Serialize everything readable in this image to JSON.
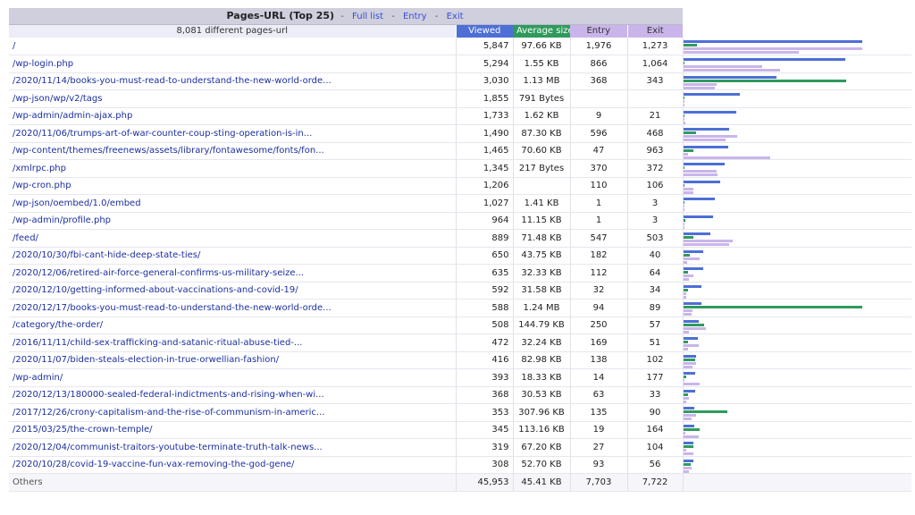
{
  "header": {
    "title": "Pages-URL (Top 25)",
    "links": [
      "Full list",
      "Entry",
      "Exit"
    ],
    "separator": "-",
    "count_label": "8,081 different pages-url",
    "columns": {
      "viewed": "Viewed",
      "average_size": "Average size",
      "entry": "Entry",
      "exit": "Exit"
    }
  },
  "colors": {
    "viewed": "#4d6fd6",
    "average_size": "#2f9a5d",
    "entry": "#c9b5ea",
    "exit": "#c9b5ea",
    "header_bg": "#cfcfde"
  },
  "rows": [
    {
      "url": "/",
      "viewed": "5,847",
      "size": "97.66 KB",
      "entry": "1,976",
      "exit": "1,273"
    },
    {
      "url": "/wp-login.php",
      "viewed": "5,294",
      "size": "1.55 KB",
      "entry": "866",
      "exit": "1,064"
    },
    {
      "url": "/2020/11/14/books-you-must-read-to-understand-the-new-world-orde...",
      "viewed": "3,030",
      "size": "1.13 MB",
      "entry": "368",
      "exit": "343"
    },
    {
      "url": "/wp-json/wp/v2/tags",
      "viewed": "1,855",
      "size": "791 Bytes",
      "entry": "",
      "exit": ""
    },
    {
      "url": "/wp-admin/admin-ajax.php",
      "viewed": "1,733",
      "size": "1.62 KB",
      "entry": "9",
      "exit": "21"
    },
    {
      "url": "/2020/11/06/trumps-art-of-war-counter-coup-sting-operation-is-in...",
      "viewed": "1,490",
      "size": "87.30 KB",
      "entry": "596",
      "exit": "468"
    },
    {
      "url": "/wp-content/themes/freenews/assets/library/fontawesome/fonts/fon...",
      "viewed": "1,465",
      "size": "70.60 KB",
      "entry": "47",
      "exit": "963"
    },
    {
      "url": "/xmlrpc.php",
      "viewed": "1,345",
      "size": "217 Bytes",
      "entry": "370",
      "exit": "372"
    },
    {
      "url": "/wp-cron.php",
      "viewed": "1,206",
      "size": "",
      "entry": "110",
      "exit": "106"
    },
    {
      "url": "/wp-json/oembed/1.0/embed",
      "viewed": "1,027",
      "size": "1.41 KB",
      "entry": "1",
      "exit": "3"
    },
    {
      "url": "/wp-admin/profile.php",
      "viewed": "964",
      "size": "11.15 KB",
      "entry": "1",
      "exit": "3"
    },
    {
      "url": "/feed/",
      "viewed": "889",
      "size": "71.48 KB",
      "entry": "547",
      "exit": "503"
    },
    {
      "url": "/2020/10/30/fbi-cant-hide-deep-state-ties/",
      "viewed": "650",
      "size": "43.75 KB",
      "entry": "182",
      "exit": "40"
    },
    {
      "url": "/2020/12/06/retired-air-force-general-confirms-us-military-seize...",
      "viewed": "635",
      "size": "32.33 KB",
      "entry": "112",
      "exit": "64"
    },
    {
      "url": "/2020/12/10/getting-informed-about-vaccinations-and-covid-19/",
      "viewed": "592",
      "size": "31.58 KB",
      "entry": "32",
      "exit": "34"
    },
    {
      "url": "/2020/12/17/books-you-must-read-to-understand-the-new-world-orde...",
      "viewed": "588",
      "size": "1.24 MB",
      "entry": "94",
      "exit": "89"
    },
    {
      "url": "/category/the-order/",
      "viewed": "508",
      "size": "144.79 KB",
      "entry": "250",
      "exit": "57"
    },
    {
      "url": "/2016/11/11/child-sex-trafficking-and-satanic-ritual-abuse-tied-...",
      "viewed": "472",
      "size": "32.24 KB",
      "entry": "169",
      "exit": "51"
    },
    {
      "url": "/2020/11/07/biden-steals-election-in-true-orwellian-fashion/",
      "viewed": "416",
      "size": "82.98 KB",
      "entry": "138",
      "exit": "102"
    },
    {
      "url": "/wp-admin/",
      "viewed": "393",
      "size": "18.33 KB",
      "entry": "14",
      "exit": "177"
    },
    {
      "url": "/2020/12/13/180000-sealed-federal-indictments-and-rising-when-wi...",
      "viewed": "368",
      "size": "30.53 KB",
      "entry": "63",
      "exit": "33"
    },
    {
      "url": "/2017/12/26/crony-capitalism-and-the-rise-of-communism-in-americ...",
      "viewed": "353",
      "size": "307.96 KB",
      "entry": "135",
      "exit": "90"
    },
    {
      "url": "/2015/03/25/the-crown-temple/",
      "viewed": "345",
      "size": "113.16 KB",
      "entry": "19",
      "exit": "164"
    },
    {
      "url": "/2020/12/04/communist-traitors-youtube-terminate-truth-talk-news...",
      "viewed": "319",
      "size": "67.20 KB",
      "entry": "27",
      "exit": "104"
    },
    {
      "url": "/2020/10/28/covid-19-vaccine-fun-vax-removing-the-god-gene/",
      "viewed": "308",
      "size": "52.70 KB",
      "entry": "93",
      "exit": "56"
    }
  ],
  "others": {
    "url": "Others",
    "viewed": "45,953",
    "size": "45.41 KB",
    "entry": "7,703",
    "exit": "7,722"
  }
}
